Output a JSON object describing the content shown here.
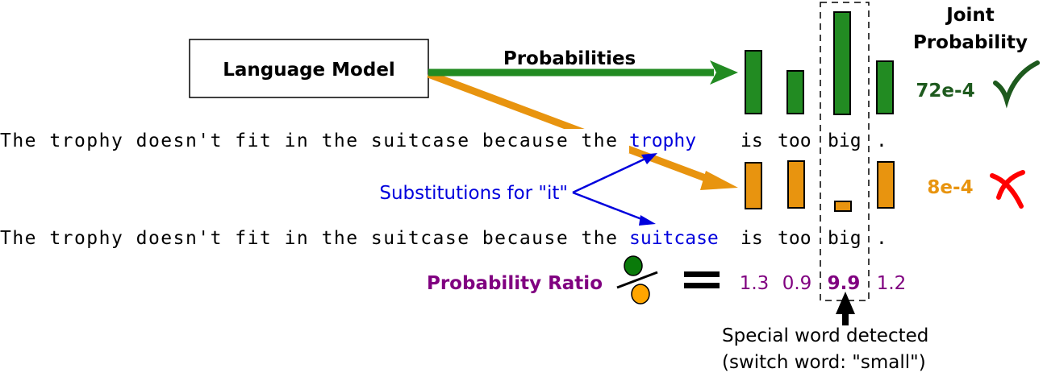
{
  "model_box": {
    "label": "Language Model"
  },
  "arrow_label": "Probabilities",
  "joint": {
    "title_line1": "Joint",
    "title_line2": "Probability",
    "correct_value": "72e-4",
    "wrong_value": "8e-4"
  },
  "sentence1": {
    "prefix": "The trophy doesn't fit in the suitcase because the",
    "substitute": "trophy",
    "words": [
      "is",
      "too",
      "big",
      "."
    ]
  },
  "sentence2": {
    "prefix": "The trophy doesn't fit in the suitcase because the",
    "substitute": "suitcase",
    "words": [
      "is",
      "too",
      "big",
      "."
    ]
  },
  "substitutions_label": "Substitutions for \"it\"",
  "ratio": {
    "label": "Probability Ratio",
    "values": [
      "1.3",
      "0.9",
      "9.9",
      "1.2"
    ]
  },
  "annotation": {
    "line1": "Special word detected",
    "line2": "(switch word: \"small\")"
  },
  "colors": {
    "green": "#228b22",
    "orange": "#e8940f",
    "blue": "#0000dd",
    "purple": "#800080",
    "dark_green": "#1e5a1e",
    "red": "#ff0000"
  }
}
